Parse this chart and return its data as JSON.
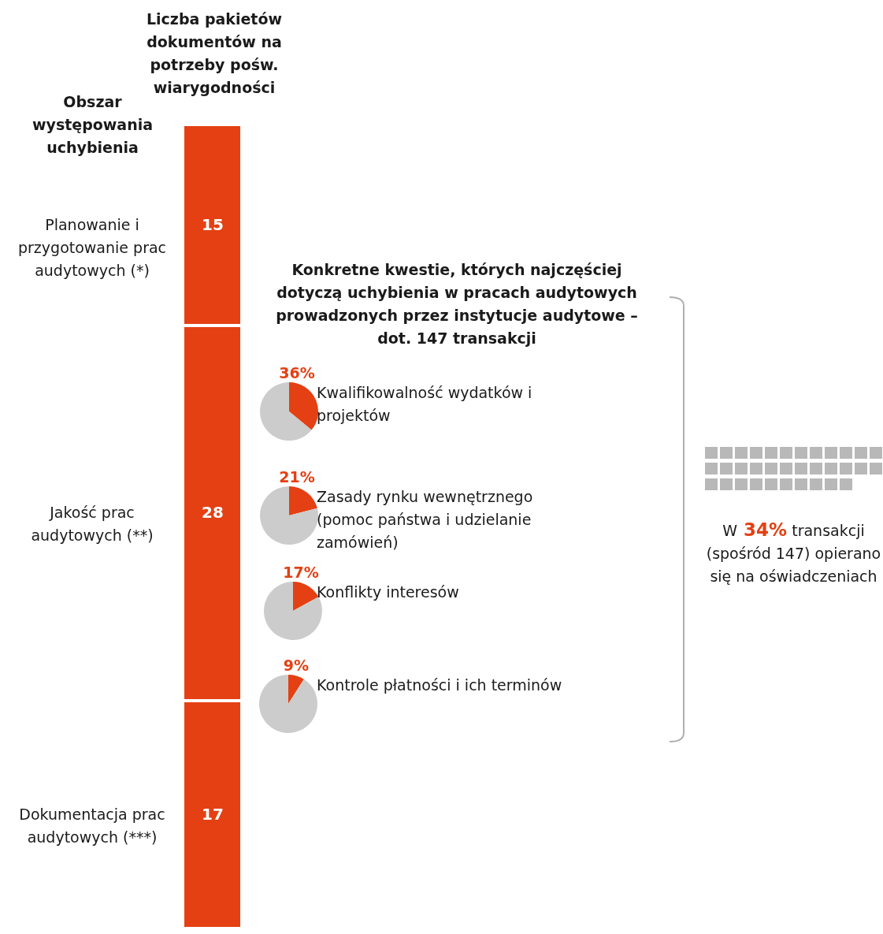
{
  "chart_data": [
    {
      "type": "bar",
      "stacked": true,
      "title": "Liczba pakietów dokumentów na potrzeby pośw. wiarygodności",
      "ylabel": "Obszar występowania uchybienia",
      "categories": [
        null
      ],
      "data_labels": true,
      "series": [
        {
          "name": "Dokumentacja prac audytowych (***)",
          "color": "#e44013",
          "values": [
            17
          ]
        },
        {
          "name": "Jakość prac audytowych (**)",
          "color": "#e44013",
          "values": [
            28
          ]
        },
        {
          "name": "Planowanie i przygotowanie prac audytowych (*)",
          "color": "#e44013",
          "values": [
            15
          ]
        }
      ]
    },
    {
      "type": "pie",
      "title": "Konkretne kwestie, których najczęściej dotyczą uchybienia w pracach audytowych prowadzonych przez instytucje audytowe – dot. 147 transakcji",
      "categories": [
        "Kwalifikowalność wydatków i projektów",
        null
      ],
      "values": [
        36,
        64
      ],
      "colors": [
        "#e44013",
        "#cccccc"
      ],
      "value_labels": [
        "36%",
        null
      ]
    },
    {
      "type": "pie",
      "categories": [
        "Zasady rynku wewnętrznego (pomoc państwa i udzielanie zamówień)",
        null
      ],
      "values": [
        21,
        79
      ],
      "colors": [
        "#e44013",
        "#cccccc"
      ],
      "value_labels": [
        "21%",
        null
      ]
    },
    {
      "type": "pie",
      "categories": [
        "Konflikty interesów",
        null
      ],
      "values": [
        17,
        83
      ],
      "colors": [
        "#e44013",
        "#cccccc"
      ],
      "value_labels": [
        "17%",
        null
      ]
    },
    {
      "type": "pie",
      "categories": [
        "Kontrole płatności i ich terminów",
        null
      ],
      "values": [
        9,
        91
      ],
      "colors": [
        "#e44013",
        "#cccccc"
      ],
      "value_labels": [
        "9%",
        null
      ]
    },
    {
      "type": "other",
      "values": [
        34
      ],
      "value_labels": [
        "34%"
      ],
      "color": "#b8b8b8",
      "annotations": [
        "W",
        "transakcji (spośród 147) opierano się na oświadczeniach"
      ]
    }
  ]
}
